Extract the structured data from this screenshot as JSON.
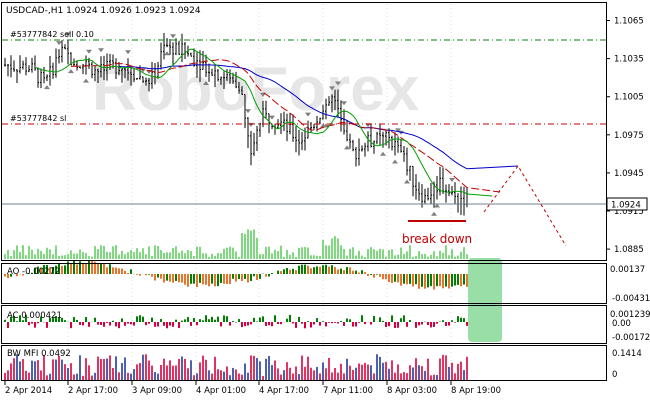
{
  "colors": {
    "background": "#ffffff",
    "frame": "#000000",
    "grid": "#c0c0c0",
    "candle": "#000000",
    "ma_fast": "#00a000",
    "ma_mid": "#c00000",
    "ma_slow": "#0000c8",
    "level_green": "#008000",
    "level_red": "#c00000",
    "current_price_line": "#708090",
    "volume": "#00b000",
    "ao_up": "#008000",
    "ao_down": "#e8742e",
    "ac_up": "#008000",
    "ac_down": "#d8003c",
    "mfi_bar": "#d8003c",
    "forecast": "#c00000",
    "annotation": "#c00000",
    "highlight": "#88d898",
    "fractal": "#808080",
    "watermark": "#e4e4e4"
  },
  "main": {
    "title": "USDCAD-,H1  1.0924 1.0926 1.0923 1.0924",
    "order_sell_label": "#53777842 sell 0.10",
    "order_sl_label": "#53777842 sl",
    "current_price": "1.0924",
    "annotation": "break down",
    "watermark": "RoboForex"
  },
  "price_axis": [
    "1.1065",
    "1.1035",
    "1.1005",
    "1.0975",
    "1.0945",
    "1.0915",
    "1.0885"
  ],
  "ao": {
    "label": "AO -0.00272",
    "axis_top": "0.00137",
    "axis_bottom": "-0.00431"
  },
  "ac": {
    "label": "AC 0.000421",
    "axis_top": "0.001239",
    "axis_mid": "0.00",
    "axis_bottom": "-0.00172"
  },
  "mfi": {
    "label": "BW MFI 0.0492",
    "axis_top": "0.1414",
    "axis_bottom": "0"
  },
  "time_axis": [
    "2 Apr 2014",
    "2 Apr 17:00",
    "3 Apr 09:00",
    "4 Apr 01:00",
    "4 Apr 17:00",
    "7 Apr 11:00",
    "8 Apr 03:00",
    "8 Apr 19:00"
  ],
  "chart_data": {
    "type": "line",
    "title": "USDCAD-,H1  1.0924 1.0926 1.0923 1.0924",
    "xlabel": "",
    "ylabel": "",
    "x": [
      "2 Apr 2014",
      "2 Apr 17:00",
      "3 Apr 09:00",
      "4 Apr 01:00",
      "4 Apr 17:00",
      "7 Apr 11:00",
      "8 Apr 03:00",
      "8 Apr 19:00"
    ],
    "ylim": [
      1.0878,
      1.1078
    ],
    "series": [
      {
        "values": [
          1.1028,
          1.104,
          1.1035,
          1.102,
          1.0985,
          1.099,
          1.0955,
          1.0925
        ]
      },
      {
        "values": [
          1.103,
          1.1034,
          1.1038,
          1.1025,
          1.1,
          1.0985,
          1.0968,
          1.0935
        ]
      },
      {
        "values": [
          1.1035,
          1.104,
          1.1042,
          1.1035,
          1.102,
          1.1,
          1.0985,
          1.0955
        ]
      }
    ],
    "levels": [
      1.1052,
      1.099,
      1.0924
    ],
    "grid": true,
    "legend": "none"
  }
}
